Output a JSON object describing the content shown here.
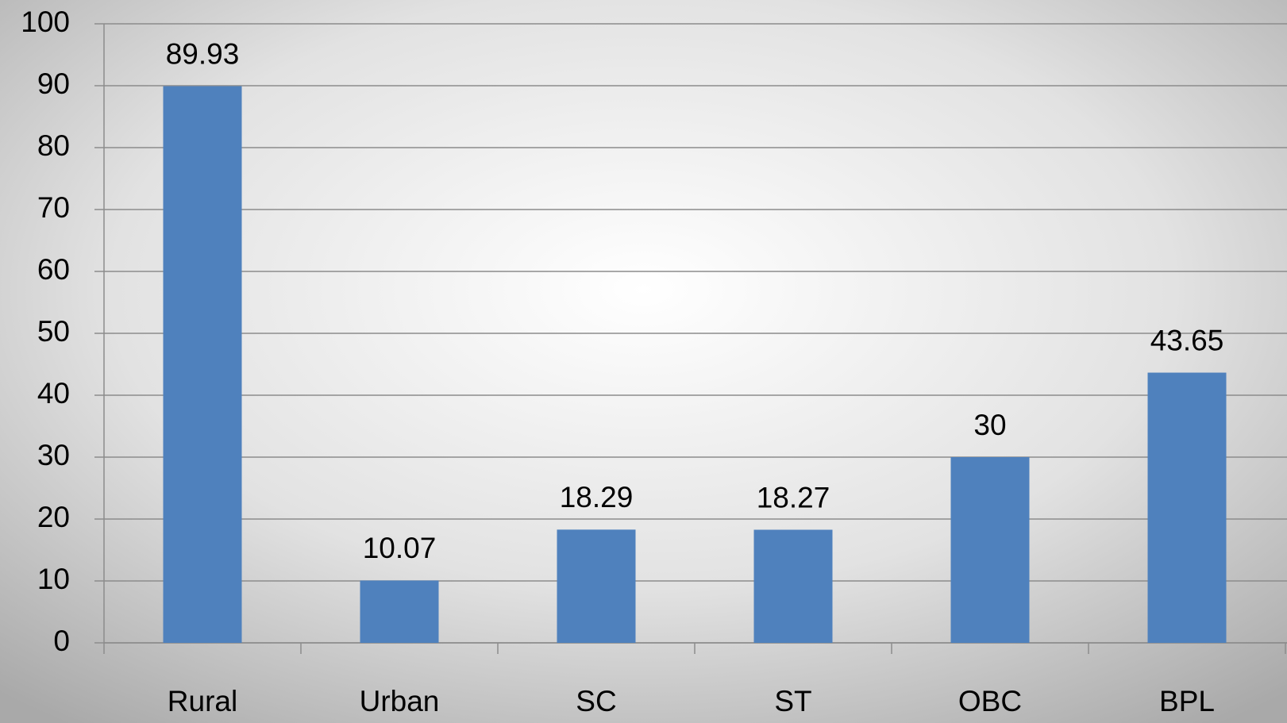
{
  "chart_data": {
    "type": "bar",
    "categories": [
      "Rural",
      "Urban",
      "SC",
      "ST",
      "OBC",
      "BPL"
    ],
    "values": [
      89.93,
      10.07,
      18.29,
      18.27,
      30,
      43.65
    ],
    "color": "#4f81bd",
    "ylim": [
      0,
      100
    ],
    "yticks": [
      0,
      10,
      20,
      30,
      40,
      50,
      60,
      70,
      80,
      90,
      100
    ],
    "grid": true
  }
}
